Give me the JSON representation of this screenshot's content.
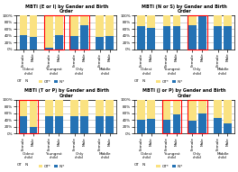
{
  "chart_data": [
    {
      "type": "bar",
      "stacked": true,
      "grid": true,
      "legend": "upper left",
      "title": "MBTI (E or I) by Gender and Birth\nOrder",
      "categories": [
        "Female",
        "Male",
        "Female",
        "Male",
        "Female",
        "Male",
        "Female",
        "Male"
      ],
      "groups": [
        "Oldest\nchild",
        "Youngest\nchild",
        "Only\nchild",
        "Middle\nchild"
      ],
      "highlight": {
        "groups": [
          "Youngest\nchild",
          "Only\nchild"
        ],
        "color": "#FF0000"
      },
      "row_labels": [
        "OT",
        "IN"
      ],
      "series": [
        {
          "name": "OT*",
          "color": "#FAE281",
          "values": [
            0.58,
            0.64,
            0.97,
            0.58,
            0.62,
            0.28,
            0.65,
            0.62
          ]
        },
        {
          "name": "IN*",
          "color": "#2472B4",
          "values": [
            0.42,
            0.36,
            0.03,
            0.42,
            0.38,
            0.72,
            0.35,
            0.38
          ]
        }
      ],
      "ylim": [
        0,
        1.0
      ],
      "yticks": [
        {
          "value": 0,
          "label": "0%"
        },
        {
          "value": 0.2,
          "label": "20%"
        },
        {
          "value": 0.4,
          "label": "40%"
        },
        {
          "value": 0.6,
          "label": "60%"
        },
        {
          "value": 0.8,
          "label": "80%"
        },
        {
          "value": 1.0,
          "label": "100%"
        }
      ]
    },
    {
      "type": "bar",
      "stacked": true,
      "grid": true,
      "legend": "upper left",
      "title": "MBTI (N or S) by Gender and Birth\nOrder",
      "categories": [
        "Female",
        "Male",
        "Female",
        "Male",
        "Female",
        "Male",
        "Female",
        "Male"
      ],
      "groups": [
        "Oldest\nchild",
        "Youngest\nchild",
        "Only\nchild",
        "Middle\nchild"
      ],
      "highlight": {
        "groups": [
          "Only\nchild"
        ],
        "color": "#FF0000"
      },
      "row_labels": [
        "OT",
        "IN"
      ],
      "series": [
        {
          "name": "OT*",
          "color": "#FAE281",
          "values": [
            0.32,
            0.36,
            0.32,
            0.32,
            0.3,
            0.0,
            0.32,
            0.32
          ]
        },
        {
          "name": "IN*",
          "color": "#2472B4",
          "values": [
            0.68,
            0.64,
            0.68,
            0.68,
            0.7,
            1.0,
            0.68,
            0.68
          ]
        }
      ],
      "ylim": [
        0,
        1.0
      ],
      "yticks": [
        {
          "value": 0,
          "label": "0%"
        },
        {
          "value": 0.2,
          "label": "20%"
        },
        {
          "value": 0.4,
          "label": "40%"
        },
        {
          "value": 0.6,
          "label": "60%"
        },
        {
          "value": 0.8,
          "label": "80%"
        },
        {
          "value": 1.0,
          "label": "100%"
        }
      ]
    },
    {
      "type": "bar",
      "stacked": true,
      "grid": true,
      "legend": "upper left",
      "title": "MBTI (T or P) by Gender and Birth\nOrder",
      "categories": [
        "Female",
        "Male",
        "Female",
        "Male",
        "Female",
        "Male",
        "Female",
        "Male"
      ],
      "groups": [
        "Oldest\nchild",
        "Youngest\nchild",
        "Only\nchild",
        "Middle\nchild"
      ],
      "highlight": {
        "groups": [
          "Oldest\nchild"
        ],
        "color": "#FF0000"
      },
      "row_labels": [
        "OT",
        "IN"
      ],
      "series": [
        {
          "name": "OT*",
          "color": "#FAE281",
          "values": [
            0.48,
            0.82,
            0.5,
            0.5,
            0.5,
            0.5,
            0.5,
            0.5
          ]
        },
        {
          "name": "IN*",
          "color": "#2472B4",
          "values": [
            0.52,
            0.18,
            0.5,
            0.5,
            0.5,
            0.5,
            0.5,
            0.5
          ]
        }
      ],
      "ylim": [
        0,
        1.0
      ],
      "yticks": [
        {
          "value": 0,
          "label": "0%"
        },
        {
          "value": 0.2,
          "label": "20%"
        },
        {
          "value": 0.4,
          "label": "40%"
        },
        {
          "value": 0.6,
          "label": "60%"
        },
        {
          "value": 0.8,
          "label": "80%"
        },
        {
          "value": 1.0,
          "label": "100%"
        }
      ]
    },
    {
      "type": "bar",
      "stacked": true,
      "grid": true,
      "legend": "upper left",
      "title": "MBTI (J or P) by Gender and Birth\nOrder",
      "categories": [
        "Female",
        "Male",
        "Female",
        "Male",
        "Female",
        "Male",
        "Female",
        "Male"
      ],
      "groups": [
        "Oldest\nchild",
        "Youngest\nchild",
        "Only\nchild",
        "Middle\nchild"
      ],
      "highlight": {
        "groups": [
          "Youngest\nchild",
          "Only\nchild"
        ],
        "color": "#FF0000"
      },
      "row_labels": [
        "OT",
        "IN"
      ],
      "series": [
        {
          "name": "OT*",
          "color": "#FAE281",
          "values": [
            0.6,
            0.58,
            0.6,
            0.45,
            0.62,
            0.42,
            0.55,
            0.7
          ]
        },
        {
          "name": "IN*",
          "color": "#2472B4",
          "values": [
            0.4,
            0.42,
            0.4,
            0.55,
            0.38,
            0.58,
            0.45,
            0.3
          ]
        }
      ],
      "ylim": [
        0,
        1.0
      ],
      "yticks": [
        {
          "value": 0,
          "label": "0%"
        },
        {
          "value": 0.2,
          "label": "20%"
        },
        {
          "value": 0.4,
          "label": "40%"
        },
        {
          "value": 0.6,
          "label": "60%"
        },
        {
          "value": 0.8,
          "label": "80%"
        },
        {
          "value": 1.0,
          "label": "100%"
        }
      ]
    }
  ]
}
